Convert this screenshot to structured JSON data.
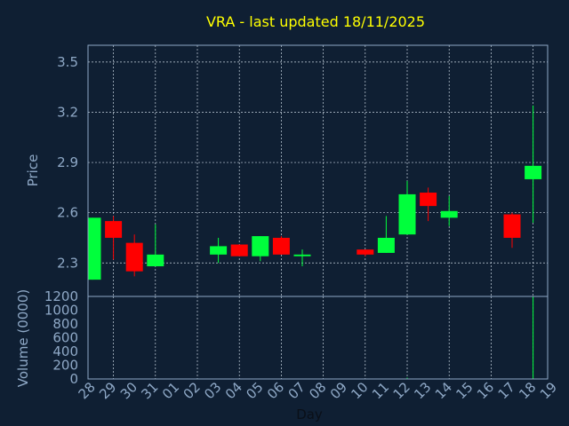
{
  "chart_data": {
    "type": "candlestick",
    "title": "VRA - last updated 18/11/2025",
    "xlabel": "Day",
    "ylabel_price": "Price",
    "ylabel_volume": "Volume (0000)",
    "x_ticks": [
      "28",
      "29",
      "30",
      "31",
      "01",
      "02",
      "03",
      "04",
      "05",
      "06",
      "07",
      "08",
      "09",
      "10",
      "11",
      "12",
      "13",
      "14",
      "15",
      "16",
      "17",
      "18",
      "19"
    ],
    "price_ticks": [
      "2.3",
      "2.6",
      "2.9",
      "3.2",
      "3.5"
    ],
    "volume_ticks": [
      "0",
      "200",
      "400",
      "600",
      "800",
      "1000",
      "1200"
    ],
    "price_ylim": [
      2.1,
      3.6
    ],
    "volume_ylim": [
      0,
      1200
    ],
    "grid": true,
    "up_color": "#00ff3c",
    "down_color": "#ff0000",
    "candles": [
      {
        "day": "28",
        "open": 2.2,
        "high": 2.57,
        "low": 2.2,
        "close": 2.57
      },
      {
        "day": "29",
        "open": 2.55,
        "high": 2.58,
        "low": 2.32,
        "close": 2.45
      },
      {
        "day": "30",
        "open": 2.42,
        "high": 2.47,
        "low": 2.22,
        "close": 2.25
      },
      {
        "day": "31",
        "open": 2.28,
        "high": 2.53,
        "low": 2.28,
        "close": 2.35
      },
      {
        "day": "03",
        "open": 2.35,
        "high": 2.45,
        "low": 2.3,
        "close": 2.4
      },
      {
        "day": "04",
        "open": 2.41,
        "high": 2.41,
        "low": 2.34,
        "close": 2.34
      },
      {
        "day": "05",
        "open": 2.34,
        "high": 2.46,
        "low": 2.31,
        "close": 2.46
      },
      {
        "day": "06",
        "open": 2.45,
        "high": 2.46,
        "low": 2.35,
        "close": 2.35
      },
      {
        "day": "07",
        "open": 2.34,
        "high": 2.38,
        "low": 2.28,
        "close": 2.35
      },
      {
        "day": "10",
        "open": 2.38,
        "high": 2.38,
        "low": 2.34,
        "close": 2.35
      },
      {
        "day": "11",
        "open": 2.36,
        "high": 2.58,
        "low": 2.36,
        "close": 2.45
      },
      {
        "day": "12",
        "open": 2.47,
        "high": 2.79,
        "low": 2.47,
        "close": 2.71
      },
      {
        "day": "13",
        "open": 2.72,
        "high": 2.75,
        "low": 2.55,
        "close": 2.64
      },
      {
        "day": "14",
        "open": 2.57,
        "high": 2.7,
        "low": 2.52,
        "close": 2.61
      },
      {
        "day": "17",
        "open": 2.59,
        "high": 2.6,
        "low": 2.39,
        "close": 2.45
      },
      {
        "day": "18",
        "open": 2.8,
        "high": 3.24,
        "low": 2.54,
        "close": 2.88
      }
    ],
    "volume": [
      {
        "day": "12",
        "value": 20
      },
      {
        "day": "18",
        "value": 1200
      }
    ]
  }
}
